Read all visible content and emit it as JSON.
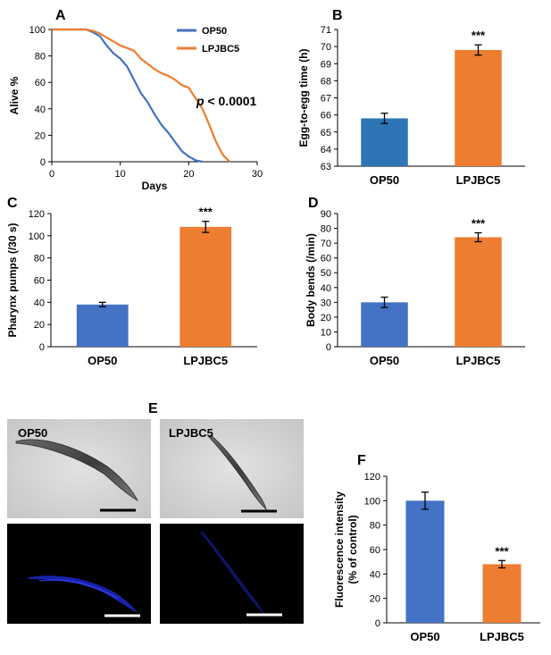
{
  "colors": {
    "op50": "#4472C4",
    "lpjbc5": "#ED7D31",
    "op50_dark": "#2E75B6"
  },
  "chart_data": [
    {
      "panel": "A",
      "type": "line",
      "xlabel": "Days",
      "ylabel": "Alive %",
      "xlim": [
        0,
        30
      ],
      "ylim": [
        0,
        100
      ],
      "xticks": [
        "0",
        "10",
        "20",
        "30"
      ],
      "yticks": [
        "0",
        "20",
        "40",
        "60",
        "80",
        "100"
      ],
      "annotation": {
        "prefix": "p",
        "text": " < 0.0001"
      },
      "series": [
        {
          "name": "OP50",
          "color": "#4472C4",
          "x": [
            0,
            5,
            6,
            7,
            8,
            9,
            10,
            11,
            12,
            13,
            14,
            15,
            16,
            17,
            18,
            19,
            20,
            21,
            22
          ],
          "y": [
            100,
            100,
            98,
            95,
            88,
            82,
            78,
            72,
            62,
            52,
            45,
            36,
            28,
            22,
            15,
            8,
            4,
            1,
            0
          ]
        },
        {
          "name": "LPJBC5",
          "color": "#ED7D31",
          "x": [
            0,
            5,
            6,
            7,
            8,
            9,
            10,
            11,
            12,
            13,
            14,
            15,
            16,
            17,
            18,
            19,
            20,
            21,
            22,
            23,
            24,
            25,
            26
          ],
          "y": [
            100,
            100,
            99,
            97,
            94,
            91,
            88,
            86,
            84,
            78,
            74,
            70,
            67,
            65,
            62,
            58,
            56,
            48,
            40,
            28,
            15,
            5,
            0
          ]
        }
      ]
    },
    {
      "panel": "B",
      "type": "bar",
      "ylabel": "Egg-to-egg time (h)",
      "ylim": [
        63,
        71
      ],
      "yticks": [
        "63",
        "64",
        "65",
        "66",
        "67",
        "68",
        "69",
        "70",
        "71"
      ],
      "categories": [
        "OP50",
        "LPJBC5"
      ],
      "values": [
        65.8,
        69.8
      ],
      "errors": [
        0.3,
        0.3
      ],
      "colors": [
        "#2E75B6",
        "#ED7D31"
      ],
      "significance": [
        "",
        "***"
      ]
    },
    {
      "panel": "C",
      "type": "bar",
      "ylabel": "Pharynx pumps (/30 s)",
      "ylim": [
        0,
        120
      ],
      "yticks": [
        "0",
        "20",
        "40",
        "60",
        "80",
        "100",
        "120"
      ],
      "categories": [
        "OP50",
        "LPJBC5"
      ],
      "values": [
        38,
        108
      ],
      "errors": [
        2,
        5
      ],
      "colors": [
        "#4472C4",
        "#ED7D31"
      ],
      "significance": [
        "",
        "***"
      ]
    },
    {
      "panel": "D",
      "type": "bar",
      "ylabel": "Body bends (/min)",
      "ylim": [
        0,
        90
      ],
      "yticks": [
        "0",
        "10",
        "20",
        "30",
        "40",
        "50",
        "60",
        "70",
        "80",
        "90"
      ],
      "categories": [
        "OP50",
        "LPJBC5"
      ],
      "values": [
        30,
        74
      ],
      "errors": [
        3.5,
        3
      ],
      "colors": [
        "#4472C4",
        "#ED7D31"
      ],
      "significance": [
        "",
        "***"
      ]
    },
    {
      "panel": "F",
      "type": "bar",
      "ylabel_lines": [
        "Fluorescence intensity",
        "(% of control)"
      ],
      "ylim": [
        0,
        120
      ],
      "yticks": [
        "0",
        "20",
        "40",
        "60",
        "80",
        "100",
        "120"
      ],
      "categories": [
        "OP50",
        "LPJBC5"
      ],
      "values": [
        100,
        48
      ],
      "errors": [
        7,
        3
      ],
      "colors": [
        "#4472C4",
        "#ED7D31"
      ],
      "significance": [
        "",
        "***"
      ]
    }
  ],
  "panel_E": {
    "label": "E",
    "images": [
      {
        "label": "OP50",
        "kind": "brightfield"
      },
      {
        "label": "LPJBC5",
        "kind": "brightfield"
      },
      {
        "label": "",
        "kind": "fluorescence"
      },
      {
        "label": "",
        "kind": "fluorescence"
      }
    ]
  }
}
